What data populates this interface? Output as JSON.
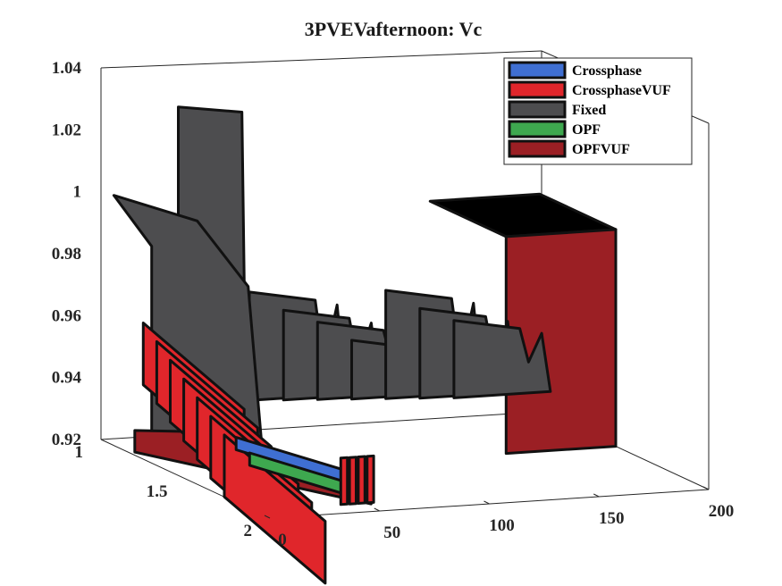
{
  "chart_data": {
    "type": "area",
    "title": "3PVEVafternoon: Vc",
    "xlabel": "",
    "ylabel": "",
    "zlabel": "",
    "x_ticks": [
      "0",
      "50",
      "100",
      "150",
      "200"
    ],
    "y_ticks": [
      "1",
      "1.5",
      "2"
    ],
    "z_ticks": [
      "0.92",
      "0.94",
      "0.96",
      "0.98",
      "1",
      "1.02",
      "1.04"
    ],
    "xlim": [
      0,
      200
    ],
    "ylim": [
      1,
      2
    ],
    "zlim": [
      0.92,
      1.04
    ],
    "legend_position": "top-right",
    "grid": false,
    "series": [
      {
        "name": "Crossphase",
        "color": "#3f6fd2",
        "edge_x": [
          0,
          50
        ],
        "edge_z": [
          0.941,
          0.928
        ],
        "level": 0.941
      },
      {
        "name": "CrossphaseVUF",
        "color": "#e0262b",
        "edge_x": [
          0,
          50
        ],
        "edge_z": [
          0.964,
          0.93
        ],
        "level": 0.964
      },
      {
        "name": "Fixed",
        "color": "#4d4d4f",
        "edge_x": [
          0,
          15,
          16,
          30,
          45,
          60,
          75,
          100,
          125,
          150,
          180,
          200
        ],
        "edge_z": [
          0.99,
          0.99,
          1.033,
          1.01,
          0.96,
          0.96,
          0.97,
          0.97,
          0.97,
          0.97,
          0.97,
          0.97
        ],
        "level": 1.0
      },
      {
        "name": "OPF",
        "color": "#3ea84f",
        "edge_x": [
          0,
          50
        ],
        "edge_z": [
          0.938,
          0.925
        ],
        "level": 0.938
      },
      {
        "name": "OPFVUF",
        "color": "#9b1f24",
        "edge_x": [
          0,
          50,
          150,
          180,
          200
        ],
        "edge_z": [
          0.928,
          0.925,
          0.99,
          0.99,
          0.99
        ],
        "level": 0.99
      }
    ]
  }
}
